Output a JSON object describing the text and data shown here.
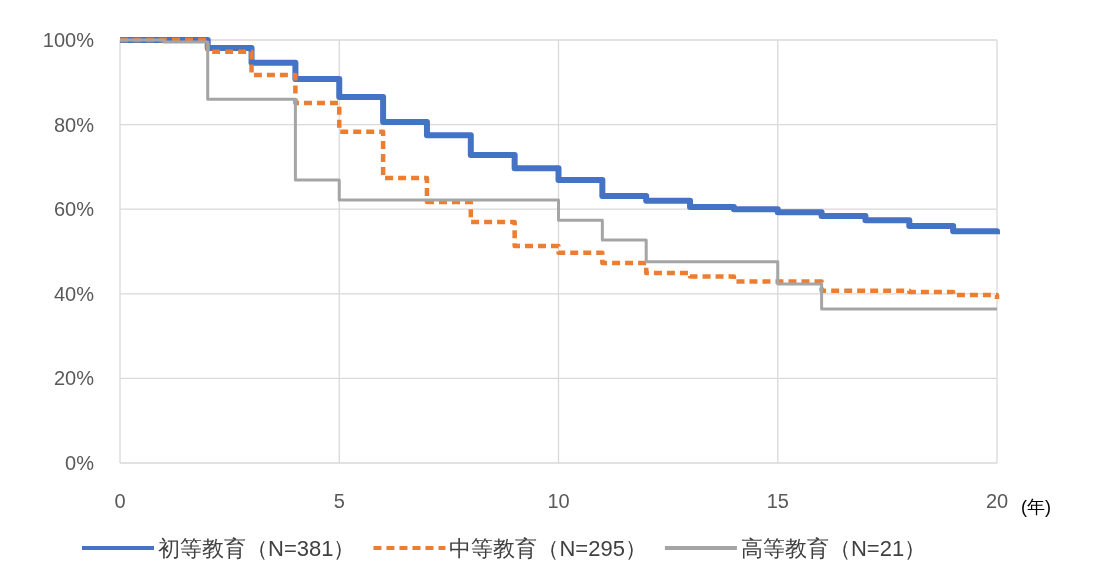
{
  "chart_data": {
    "type": "step",
    "xlabel": "(年)",
    "xlim": [
      0,
      20
    ],
    "xticks": [
      0,
      5,
      10,
      15,
      20
    ],
    "ylim": [
      0,
      100
    ],
    "yticks": [
      {
        "value": 0,
        "label": "0%"
      },
      {
        "value": 20,
        "label": "20%"
      },
      {
        "value": 40,
        "label": "40%"
      },
      {
        "value": 60,
        "label": "60%"
      },
      {
        "value": 80,
        "label": "80%"
      },
      {
        "value": 100,
        "label": "100%"
      }
    ],
    "grid": true,
    "legend": "bottom",
    "series": [
      {
        "name": "初等教育（N=381）",
        "color": "#4472c4",
        "line_style": "solid",
        "x": [
          0,
          2,
          3,
          4,
          5,
          6,
          7,
          8,
          9,
          10,
          11,
          12,
          13,
          14,
          15,
          16,
          17,
          18,
          19,
          20
        ],
        "values": [
          100,
          98.1,
          94.6,
          90.8,
          86.5,
          80.6,
          77.5,
          72.8,
          69.7,
          66.9,
          63.1,
          62.0,
          60.5,
          60.0,
          59.3,
          58.4,
          57.4,
          56.0,
          54.8,
          54.1
        ]
      },
      {
        "name": "中等教育（N=295）",
        "color": "#ed7d31",
        "line_style": "dashed",
        "x": [
          0,
          2,
          3,
          4,
          5,
          6,
          7,
          8,
          9,
          10,
          11,
          12,
          13,
          14,
          15,
          16,
          18,
          19,
          20
        ],
        "values": [
          100,
          97.2,
          91.7,
          85.1,
          78.3,
          67.4,
          61.7,
          57.0,
          51.3,
          49.7,
          47.3,
          44.9,
          44.1,
          42.9,
          42.9,
          40.7,
          40.4,
          39.7,
          38.8
        ]
      },
      {
        "name": "高等教育（N=21）",
        "color": "#a5a5a5",
        "line_style": "solid",
        "x": [
          0,
          1,
          2,
          4,
          5,
          10,
          11,
          12,
          15,
          16,
          20
        ],
        "values": [
          100,
          99.5,
          86.0,
          66.9,
          62.2,
          57.4,
          52.7,
          47.6,
          42.3,
          36.4,
          36.4
        ]
      }
    ]
  }
}
